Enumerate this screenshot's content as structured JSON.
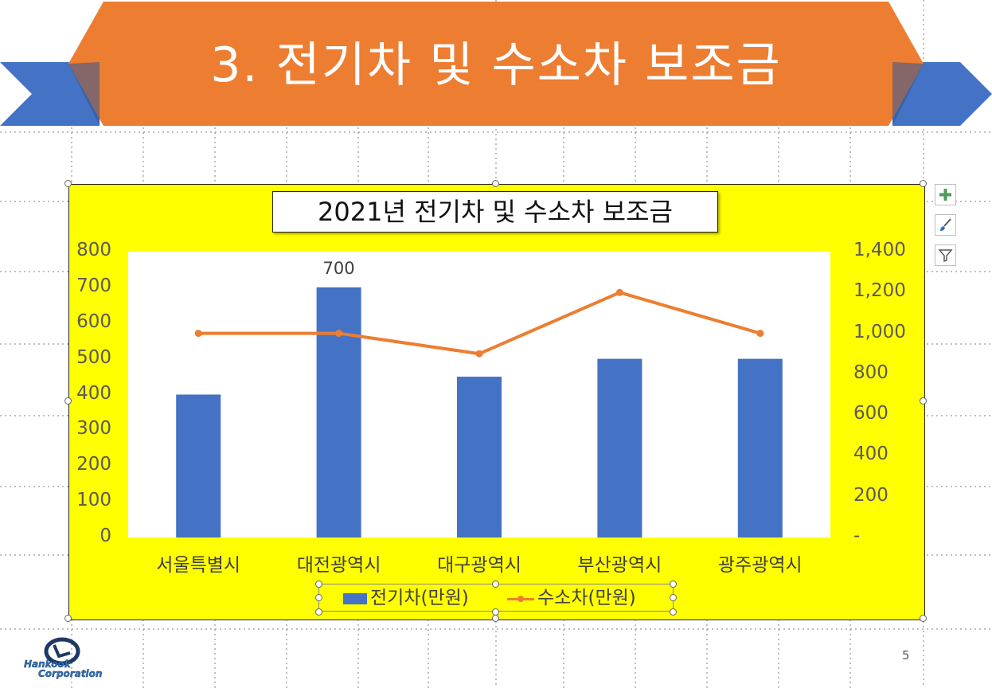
{
  "slide": {
    "title": "3. 전기차 및 수소차 보조금",
    "page_number": "5",
    "logo_text": [
      "Hankook",
      "Corporation"
    ]
  },
  "colors": {
    "banner": "#ed7d31",
    "ribbon": "#4472c4",
    "chart_background": "#ffff00",
    "bar": "#4472c4",
    "line": "#ed7d31"
  },
  "chart_data": {
    "type": "bar",
    "title": "2021년 전기차 및 수소차 보조금",
    "categories": [
      "서울특별시",
      "대전광역시",
      "대구광역시",
      "부산광역시",
      "광주광역시"
    ],
    "series": [
      {
        "name": "전기차(만원)",
        "type": "bar",
        "axis": "left",
        "values": [
          400,
          700,
          450,
          500,
          500
        ]
      },
      {
        "name": "수소차(만원)",
        "type": "line",
        "axis": "right",
        "values": [
          1000,
          1000,
          900,
          1200,
          1000
        ]
      }
    ],
    "ylim_left": [
      0,
      800
    ],
    "ylim_right": [
      0,
      1400
    ],
    "left_ticks": [
      "0",
      "100",
      "200",
      "300",
      "400",
      "500",
      "600",
      "700",
      "800"
    ],
    "right_ticks": [
      "-",
      "200",
      "400",
      "600",
      "800",
      "1,000",
      "1,200",
      "1,400"
    ],
    "data_labels": [
      {
        "category": "대전광역시",
        "value": "700"
      }
    ],
    "legend_position": "bottom",
    "grid": false
  },
  "chart_tools": [
    "plus-icon",
    "brush-icon",
    "filter-icon"
  ]
}
